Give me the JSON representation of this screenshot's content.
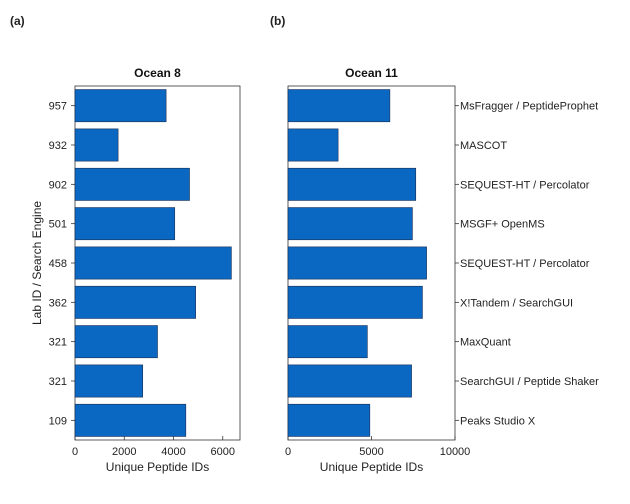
{
  "panel_labels": [
    "(a)",
    "(b)"
  ],
  "shared": {
    "ylabel": "Lab ID / Search Engine",
    "lab_ids": [
      "957",
      "932",
      "902",
      "501",
      "458",
      "362",
      "321",
      "321",
      "109"
    ],
    "search_engines": [
      "MsFragger / PeptideProphet",
      "MASCOT",
      "SEQUEST-HT / Percolator",
      "MSGF+ OpenMS",
      "SEQUEST-HT / Percolator",
      "X!Tandem / SearchGUI",
      "MaxQuant",
      "SearchGUI / Peptide Shaker",
      "Peaks Studio X"
    ],
    "bar_color": "#0b68c2"
  },
  "chart_data": [
    {
      "type": "bar",
      "orientation": "horizontal",
      "title": "Ocean 8",
      "xlabel": "Unique Peptide IDs",
      "categories": [
        "957",
        "932",
        "902",
        "501",
        "458",
        "362",
        "321",
        "321",
        "109"
      ],
      "values": [
        3700,
        1750,
        4650,
        4050,
        6350,
        4900,
        3350,
        2750,
        4500
      ],
      "xlim": [
        0,
        6700
      ],
      "xticks": [
        0,
        2000,
        4000,
        6000
      ],
      "grid": false
    },
    {
      "type": "bar",
      "orientation": "horizontal",
      "title": "Ocean 11",
      "xlabel": "Unique Peptide IDs",
      "categories": [
        "MsFragger / PeptideProphet",
        "MASCOT",
        "SEQUEST-HT / Percolator",
        "MSGF+ OpenMS",
        "SEQUEST-HT / Percolator",
        "X!Tandem / SearchGUI",
        "MaxQuant",
        "SearchGUI / Peptide Shaker",
        "Peaks Studio X"
      ],
      "values": [
        6100,
        3000,
        7650,
        7450,
        8300,
        8050,
        4750,
        7400,
        4900
      ],
      "xlim": [
        0,
        10000
      ],
      "xticks": [
        0,
        5000,
        10000
      ],
      "grid": false
    }
  ]
}
